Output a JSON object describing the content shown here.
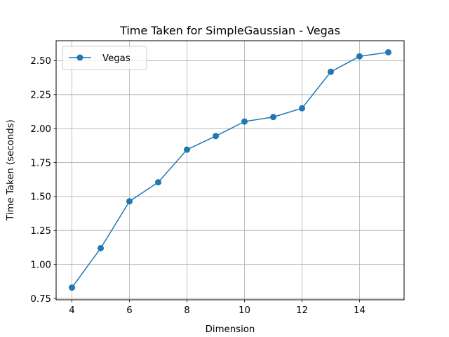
{
  "chart_data": {
    "type": "line",
    "title": "Time Taken for SimpleGaussian - Vegas",
    "xlabel": "Dimension",
    "ylabel": "Time Taken (seconds)",
    "xlim": [
      3.45,
      15.55
    ],
    "ylim": [
      0.74,
      2.647
    ],
    "xticks": [
      4,
      6,
      8,
      10,
      12,
      14
    ],
    "yticks": [
      0.75,
      1.0,
      1.25,
      1.5,
      1.75,
      2.0,
      2.25,
      2.5
    ],
    "xtick_labels": [
      "4",
      "6",
      "8",
      "10",
      "12",
      "14"
    ],
    "ytick_labels": [
      "0.75",
      "1.00",
      "1.25",
      "1.50",
      "1.75",
      "2.00",
      "2.25",
      "2.50"
    ],
    "grid": true,
    "legend_position": "top-left",
    "series": [
      {
        "name": "Vegas",
        "color": "#1f77b4",
        "x": [
          4,
          5,
          6,
          7,
          8,
          9,
          10,
          11,
          12,
          13,
          14,
          15
        ],
        "y": [
          0.83,
          1.12,
          1.465,
          1.605,
          1.845,
          1.945,
          2.052,
          2.085,
          2.15,
          2.418,
          2.532,
          2.562
        ]
      }
    ]
  }
}
